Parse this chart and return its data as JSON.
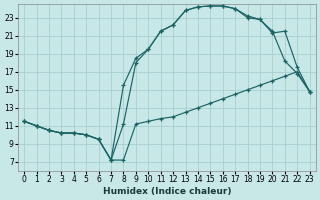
{
  "xlabel": "Humidex (Indice chaleur)",
  "bg_color": "#c8e8e8",
  "grid_color": "#a8cece",
  "line_color": "#1a6464",
  "xlim": [
    -0.5,
    23.5
  ],
  "ylim": [
    6.0,
    24.5
  ],
  "xticks": [
    0,
    1,
    2,
    3,
    4,
    5,
    6,
    7,
    8,
    9,
    10,
    11,
    12,
    13,
    14,
    15,
    16,
    17,
    18,
    19,
    20,
    21,
    22,
    23
  ],
  "yticks": [
    7,
    9,
    11,
    13,
    15,
    17,
    19,
    21,
    23
  ],
  "line1_x": [
    0,
    1,
    2,
    3,
    4,
    5,
    6,
    7,
    8,
    9,
    10,
    11,
    12,
    13,
    14,
    15,
    16,
    17,
    18,
    19,
    20,
    21,
    22,
    23
  ],
  "line1_y": [
    11.5,
    11.0,
    10.5,
    10.2,
    10.2,
    10.0,
    9.5,
    7.2,
    7.2,
    11.2,
    11.5,
    11.8,
    12.0,
    12.5,
    13.0,
    13.5,
    14.0,
    14.5,
    15.0,
    15.5,
    16.0,
    16.5,
    17.0,
    14.8
  ],
  "line2_x": [
    0,
    1,
    2,
    3,
    4,
    5,
    6,
    7,
    8,
    9,
    10,
    11,
    12,
    13,
    14,
    15,
    16,
    17,
    18,
    19,
    20,
    21,
    22,
    23
  ],
  "line2_y": [
    11.5,
    11.0,
    10.5,
    10.2,
    10.2,
    10.0,
    9.5,
    7.2,
    15.5,
    18.5,
    19.5,
    21.5,
    22.2,
    23.8,
    24.2,
    24.3,
    24.3,
    24.0,
    23.2,
    22.8,
    21.5,
    18.2,
    16.8,
    14.8
  ],
  "line3_x": [
    0,
    1,
    2,
    3,
    4,
    5,
    6,
    7,
    8,
    9,
    10,
    11,
    12,
    13,
    14,
    15,
    16,
    17,
    18,
    19,
    20,
    21,
    22,
    23
  ],
  "line3_y": [
    11.5,
    11.0,
    10.5,
    10.2,
    10.2,
    10.0,
    9.5,
    7.2,
    11.2,
    18.0,
    19.5,
    21.5,
    22.2,
    23.8,
    24.2,
    24.3,
    24.3,
    24.0,
    23.0,
    22.8,
    21.3,
    21.5,
    17.5,
    14.8
  ],
  "xlabel_color": "#1a3a3a",
  "xlabel_fontsize": 6.5,
  "tick_fontsize": 5.5
}
